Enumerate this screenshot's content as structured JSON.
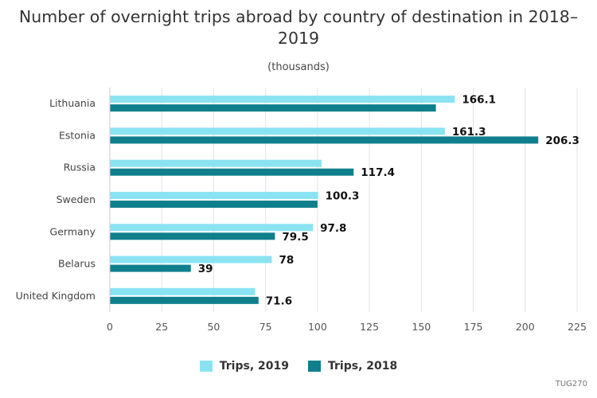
{
  "chart_data": {
    "type": "bar",
    "orientation": "horizontal",
    "title": "Number of overnight trips abroad by country of destination in 2018–2019",
    "subtitle": "(thousands)",
    "categories": [
      "Lithuania",
      "Estonia",
      "Russia",
      "Sweden",
      "Germany",
      "Belarus",
      "United Kingdom"
    ],
    "series": [
      {
        "name": "Trips, 2019",
        "color": "#8be3f2",
        "values": [
          166.1,
          161.3,
          102,
          100.3,
          97.8,
          78,
          70
        ],
        "labels": [
          "166.1",
          "161.3",
          "",
          "100.3",
          "97.8",
          "78",
          ""
        ]
      },
      {
        "name": "Trips, 2018",
        "color": "#0f7f8d",
        "values": [
          157,
          206.3,
          117.4,
          100,
          79.5,
          39,
          71.6
        ],
        "labels": [
          "",
          "206.3",
          "117.4",
          "",
          "79.5",
          "39",
          "71.6"
        ]
      }
    ],
    "xlim": [
      0,
      225
    ],
    "xticks": [
      0,
      25,
      50,
      75,
      100,
      125,
      150,
      175,
      200,
      225
    ],
    "grid": true,
    "legend_position": "bottom"
  },
  "source_id": "TUG270"
}
